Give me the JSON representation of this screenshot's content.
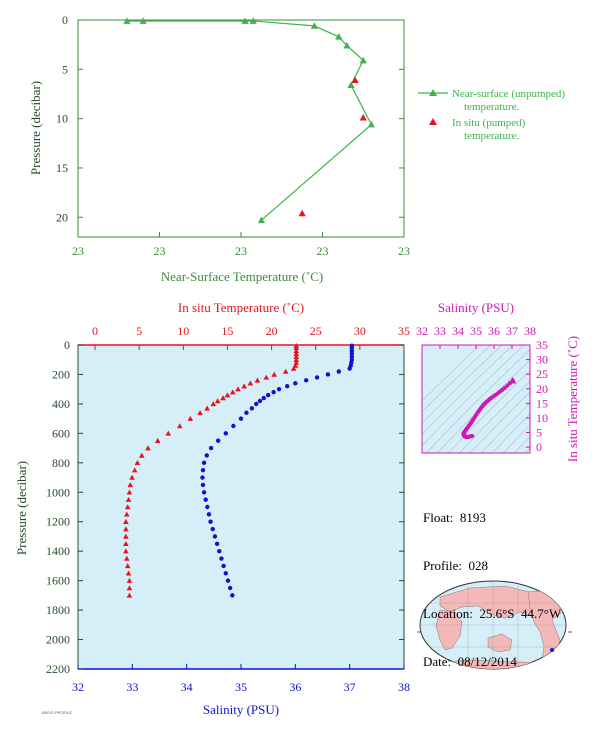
{
  "colors": {
    "panel_bg": "#d6eef8",
    "near_surface": "#3cb44b",
    "in_situ_red": "#e8141b",
    "salinity_blue": "#0a14d2",
    "inset_magenta": "#cc1ab4",
    "axis_green": "#3d8a3d",
    "label_dark": "#2a4a2a",
    "land": "#f4b8b8",
    "ocean": "#d6eef8"
  },
  "float_info": {
    "float": "Float:  8193",
    "profile": "Profile:  028",
    "location": "Location:  25.6°S  44.7°W",
    "date": "Date:  08/12/2014"
  },
  "footer_text": "ARGO PROFILE",
  "chart_data": [
    {
      "type": "line",
      "xlabel": "Near-Surface Temperature (˚C)",
      "ylabel": "Pressure (decibar)",
      "x_tick_labels": [
        "23",
        "23",
        "23",
        "23",
        "23"
      ],
      "y_ticks": [
        0,
        5,
        10,
        15,
        20
      ],
      "ylim": [
        0,
        22
      ],
      "xlim": [
        22.8,
        23.6
      ],
      "legend": [
        {
          "label": "Near-surface (unpumped)",
          "label2": "temperature."
        },
        {
          "label": "In situ (pumped)",
          "label2": "temperature."
        }
      ],
      "legend_position": "right",
      "series": [
        {
          "name": "Near-surface (unpumped) temperature.",
          "marker": "triangle",
          "points": [
            {
              "x": 22.92,
              "y": 0.1
            },
            {
              "x": 22.96,
              "y": 0.1
            },
            {
              "x": 23.21,
              "y": 0.1
            },
            {
              "x": 23.23,
              "y": 0.1
            },
            {
              "x": 23.38,
              "y": 0.6
            },
            {
              "x": 23.44,
              "y": 1.7
            },
            {
              "x": 23.46,
              "y": 2.6
            },
            {
              "x": 23.5,
              "y": 4.1
            },
            {
              "x": 23.47,
              "y": 6.6
            },
            {
              "x": 23.52,
              "y": 10.6
            },
            {
              "x": 23.25,
              "y": 20.3
            }
          ]
        },
        {
          "name": "In situ (pumped) temperature.",
          "marker": "triangle",
          "points": [
            {
              "x": 23.48,
              "y": 6.1
            },
            {
              "x": 23.5,
              "y": 9.9
            },
            {
              "x": 23.35,
              "y": 19.6
            }
          ]
        }
      ]
    },
    {
      "type": "scatter",
      "ylabel": "Pressure (decibar)",
      "top_xlabel": "In situ Temperature (˚C)",
      "bottom_xlabel": "Salinity (PSU)",
      "temperature_ticks": [
        0,
        5,
        10,
        15,
        20,
        25,
        30,
        35
      ],
      "salinity_ticks": [
        32,
        33,
        34,
        35,
        36,
        37,
        38
      ],
      "pressure_ticks": [
        0,
        200,
        400,
        600,
        800,
        1000,
        1200,
        1400,
        1600,
        1800,
        2000,
        2200
      ],
      "temperature_range": [
        -1,
        35
      ],
      "salinity_range": [
        32,
        38
      ],
      "ylim": [
        0,
        2200
      ],
      "series": [
        {
          "name": "In situ Temperature",
          "marker": "triangle",
          "points": [
            {
              "p": 5,
              "t": 22.8
            },
            {
              "p": 20,
              "t": 22.8
            },
            {
              "p": 40,
              "t": 22.8
            },
            {
              "p": 60,
              "t": 22.8
            },
            {
              "p": 80,
              "t": 22.8
            },
            {
              "p": 100,
              "t": 22.8
            },
            {
              "p": 120,
              "t": 22.8
            },
            {
              "p": 140,
              "t": 22.7
            },
            {
              "p": 160,
              "t": 22.5
            },
            {
              "p": 180,
              "t": 21.6
            },
            {
              "p": 200,
              "t": 20.3
            },
            {
              "p": 220,
              "t": 19.4
            },
            {
              "p": 240,
              "t": 18.4
            },
            {
              "p": 260,
              "t": 17.6
            },
            {
              "p": 280,
              "t": 16.9
            },
            {
              "p": 300,
              "t": 16.2
            },
            {
              "p": 320,
              "t": 15.6
            },
            {
              "p": 340,
              "t": 15.0
            },
            {
              "p": 360,
              "t": 14.5
            },
            {
              "p": 380,
              "t": 13.9
            },
            {
              "p": 400,
              "t": 13.4
            },
            {
              "p": 430,
              "t": 12.7
            },
            {
              "p": 460,
              "t": 11.9
            },
            {
              "p": 500,
              "t": 10.8
            },
            {
              "p": 550,
              "t": 9.6
            },
            {
              "p": 600,
              "t": 8.3
            },
            {
              "p": 650,
              "t": 7.1
            },
            {
              "p": 700,
              "t": 6.0
            },
            {
              "p": 750,
              "t": 5.3
            },
            {
              "p": 800,
              "t": 4.8
            },
            {
              "p": 850,
              "t": 4.5
            },
            {
              "p": 900,
              "t": 4.2
            },
            {
              "p": 950,
              "t": 4.0
            },
            {
              "p": 1000,
              "t": 3.9
            },
            {
              "p": 1050,
              "t": 3.8
            },
            {
              "p": 1100,
              "t": 3.7
            },
            {
              "p": 1150,
              "t": 3.6
            },
            {
              "p": 1200,
              "t": 3.5
            },
            {
              "p": 1250,
              "t": 3.5
            },
            {
              "p": 1300,
              "t": 3.5
            },
            {
              "p": 1350,
              "t": 3.5
            },
            {
              "p": 1400,
              "t": 3.5
            },
            {
              "p": 1450,
              "t": 3.6
            },
            {
              "p": 1500,
              "t": 3.7
            },
            {
              "p": 1550,
              "t": 3.8
            },
            {
              "p": 1600,
              "t": 3.9
            },
            {
              "p": 1650,
              "t": 3.9
            },
            {
              "p": 1700,
              "t": 3.9
            }
          ]
        },
        {
          "name": "Salinity",
          "marker": "circle",
          "points": [
            {
              "p": 5,
              "s": 37.04
            },
            {
              "p": 20,
              "s": 37.04
            },
            {
              "p": 40,
              "s": 37.04
            },
            {
              "p": 60,
              "s": 37.04
            },
            {
              "p": 80,
              "s": 37.04
            },
            {
              "p": 100,
              "s": 37.04
            },
            {
              "p": 120,
              "s": 37.03
            },
            {
              "p": 140,
              "s": 37.02
            },
            {
              "p": 160,
              "s": 37.0
            },
            {
              "p": 180,
              "s": 36.8
            },
            {
              "p": 200,
              "s": 36.6
            },
            {
              "p": 220,
              "s": 36.4
            },
            {
              "p": 240,
              "s": 36.2
            },
            {
              "p": 260,
              "s": 36.0
            },
            {
              "p": 280,
              "s": 35.85
            },
            {
              "p": 300,
              "s": 35.7
            },
            {
              "p": 320,
              "s": 35.6
            },
            {
              "p": 340,
              "s": 35.5
            },
            {
              "p": 360,
              "s": 35.42
            },
            {
              "p": 380,
              "s": 35.35
            },
            {
              "p": 400,
              "s": 35.28
            },
            {
              "p": 430,
              "s": 35.2
            },
            {
              "p": 460,
              "s": 35.1
            },
            {
              "p": 500,
              "s": 35.0
            },
            {
              "p": 550,
              "s": 34.86
            },
            {
              "p": 600,
              "s": 34.72
            },
            {
              "p": 650,
              "s": 34.58
            },
            {
              "p": 700,
              "s": 34.45
            },
            {
              "p": 750,
              "s": 34.37
            },
            {
              "p": 800,
              "s": 34.32
            },
            {
              "p": 850,
              "s": 34.3
            },
            {
              "p": 900,
              "s": 34.29
            },
            {
              "p": 950,
              "s": 34.3
            },
            {
              "p": 1000,
              "s": 34.32
            },
            {
              "p": 1050,
              "s": 34.35
            },
            {
              "p": 1100,
              "s": 34.38
            },
            {
              "p": 1150,
              "s": 34.41
            },
            {
              "p": 1200,
              "s": 34.44
            },
            {
              "p": 1250,
              "s": 34.48
            },
            {
              "p": 1300,
              "s": 34.52
            },
            {
              "p": 1350,
              "s": 34.56
            },
            {
              "p": 1400,
              "s": 34.6
            },
            {
              "p": 1450,
              "s": 34.64
            },
            {
              "p": 1500,
              "s": 34.68
            },
            {
              "p": 1550,
              "s": 34.72
            },
            {
              "p": 1600,
              "s": 34.76
            },
            {
              "p": 1650,
              "s": 34.8
            },
            {
              "p": 1700,
              "s": 34.84
            }
          ]
        }
      ]
    },
    {
      "type": "scatter",
      "top_xlabel": "Salinity (PSU)",
      "right_ylabel": "In situ Temperature (˚C)",
      "x_ticks": [
        32,
        33,
        34,
        35,
        36,
        37,
        38
      ],
      "y_ticks": [
        0,
        5,
        10,
        15,
        20,
        25,
        30,
        35
      ],
      "xlim": [
        32,
        38
      ],
      "ylim": [
        -2,
        35
      ],
      "series": [
        {
          "name": "T-S",
          "points": [
            {
              "s": 37.04,
              "t": 22.8
            },
            {
              "s": 36.6,
              "t": 20.3
            },
            {
              "s": 36.2,
              "t": 18.4
            },
            {
              "s": 35.85,
              "t": 16.9
            },
            {
              "s": 35.6,
              "t": 15.6
            },
            {
              "s": 35.42,
              "t": 14.5
            },
            {
              "s": 35.28,
              "t": 13.4
            },
            {
              "s": 35.1,
              "t": 11.9
            },
            {
              "s": 34.86,
              "t": 9.6
            },
            {
              "s": 34.72,
              "t": 8.3
            },
            {
              "s": 34.58,
              "t": 7.1
            },
            {
              "s": 34.45,
              "t": 6.0
            },
            {
              "s": 34.37,
              "t": 5.3
            },
            {
              "s": 34.32,
              "t": 4.8
            },
            {
              "s": 34.3,
              "t": 4.5
            },
            {
              "s": 34.35,
              "t": 3.8
            },
            {
              "s": 34.44,
              "t": 3.5
            },
            {
              "s": 34.56,
              "t": 3.5
            },
            {
              "s": 34.68,
              "t": 3.7
            },
            {
              "s": 34.84,
              "t": 3.9
            }
          ],
          "highlight": {
            "s": 37.04,
            "t": 22.8
          }
        }
      ]
    }
  ]
}
